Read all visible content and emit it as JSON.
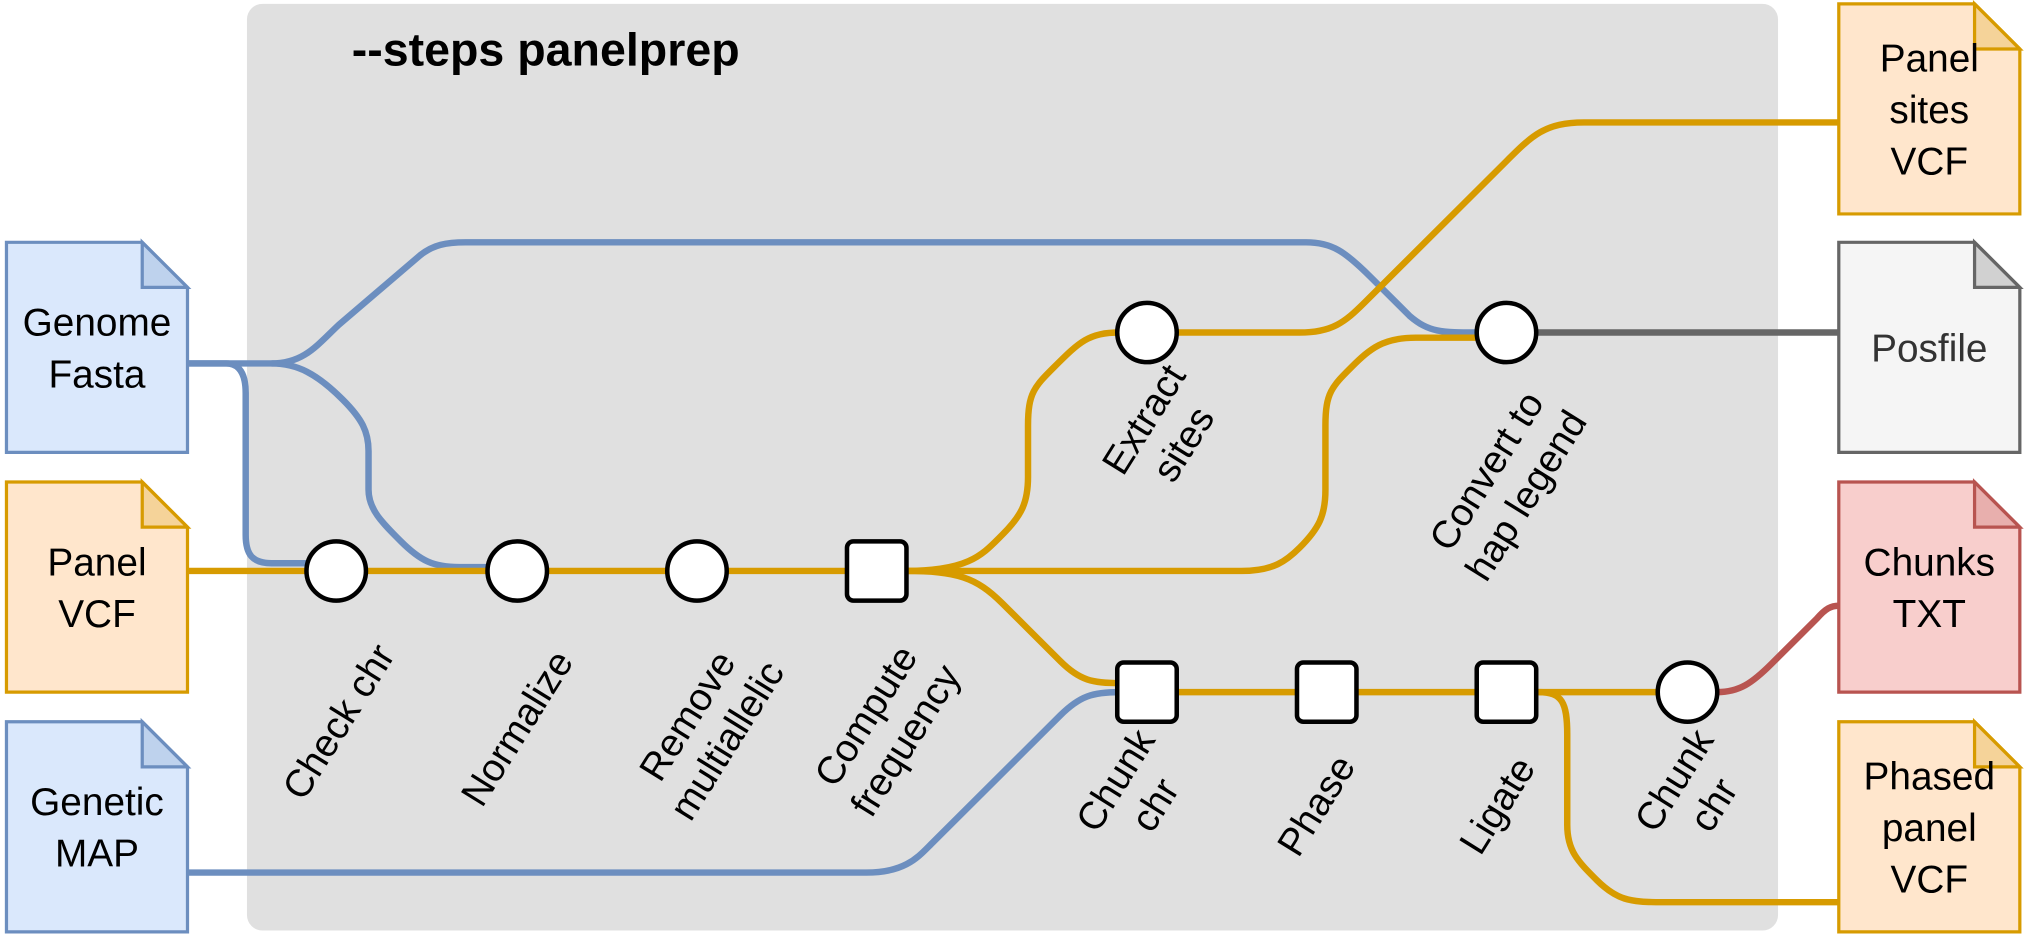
{
  "title": "--steps panelprep",
  "colors": {
    "blue_fill": "#dae8fc",
    "blue_stroke": "#6c8ebf",
    "orange_fill": "#ffe6cc",
    "orange_stroke": "#d79b00",
    "gray_fill": "#f5f5f5",
    "gray_stroke": "#666666",
    "red_fill": "#f8cecc",
    "red_stroke": "#b85450",
    "panel_bg": "#e0e0e0"
  },
  "inputs": [
    {
      "lines": [
        "Genome",
        "Fasta"
      ],
      "color": "blue"
    },
    {
      "lines": [
        "Panel",
        "VCF"
      ],
      "color": "orange"
    },
    {
      "lines": [
        "Genetic",
        "MAP"
      ],
      "color": "blue"
    }
  ],
  "outputs": [
    {
      "lines": [
        "Panel",
        "sites",
        "VCF"
      ],
      "color": "orange"
    },
    {
      "lines": [
        "Posfile"
      ],
      "color": "gray"
    },
    {
      "lines": [
        "Chunks",
        "TXT"
      ],
      "color": "red"
    },
    {
      "lines": [
        "Phased",
        "panel",
        "VCF"
      ],
      "color": "orange"
    }
  ],
  "steps": [
    {
      "lines": [
        "Check chr"
      ],
      "shape": "circle"
    },
    {
      "lines": [
        "Normalize"
      ],
      "shape": "circle"
    },
    {
      "lines": [
        "Remove",
        "multiallelic"
      ],
      "shape": "circle"
    },
    {
      "lines": [
        "Compute",
        "frequency"
      ],
      "shape": "square"
    },
    {
      "lines": [
        "Extract",
        "sites"
      ],
      "shape": "circle"
    },
    {
      "lines": [
        "Convert to",
        "hap legend"
      ],
      "shape": "circle"
    },
    {
      "lines": [
        "Chunk",
        "chr"
      ],
      "shape": "square"
    },
    {
      "lines": [
        "Phase"
      ],
      "shape": "square"
    },
    {
      "lines": [
        "Ligate"
      ],
      "shape": "square"
    },
    {
      "lines": [
        "Chunk",
        "chr"
      ],
      "shape": "circle"
    }
  ]
}
